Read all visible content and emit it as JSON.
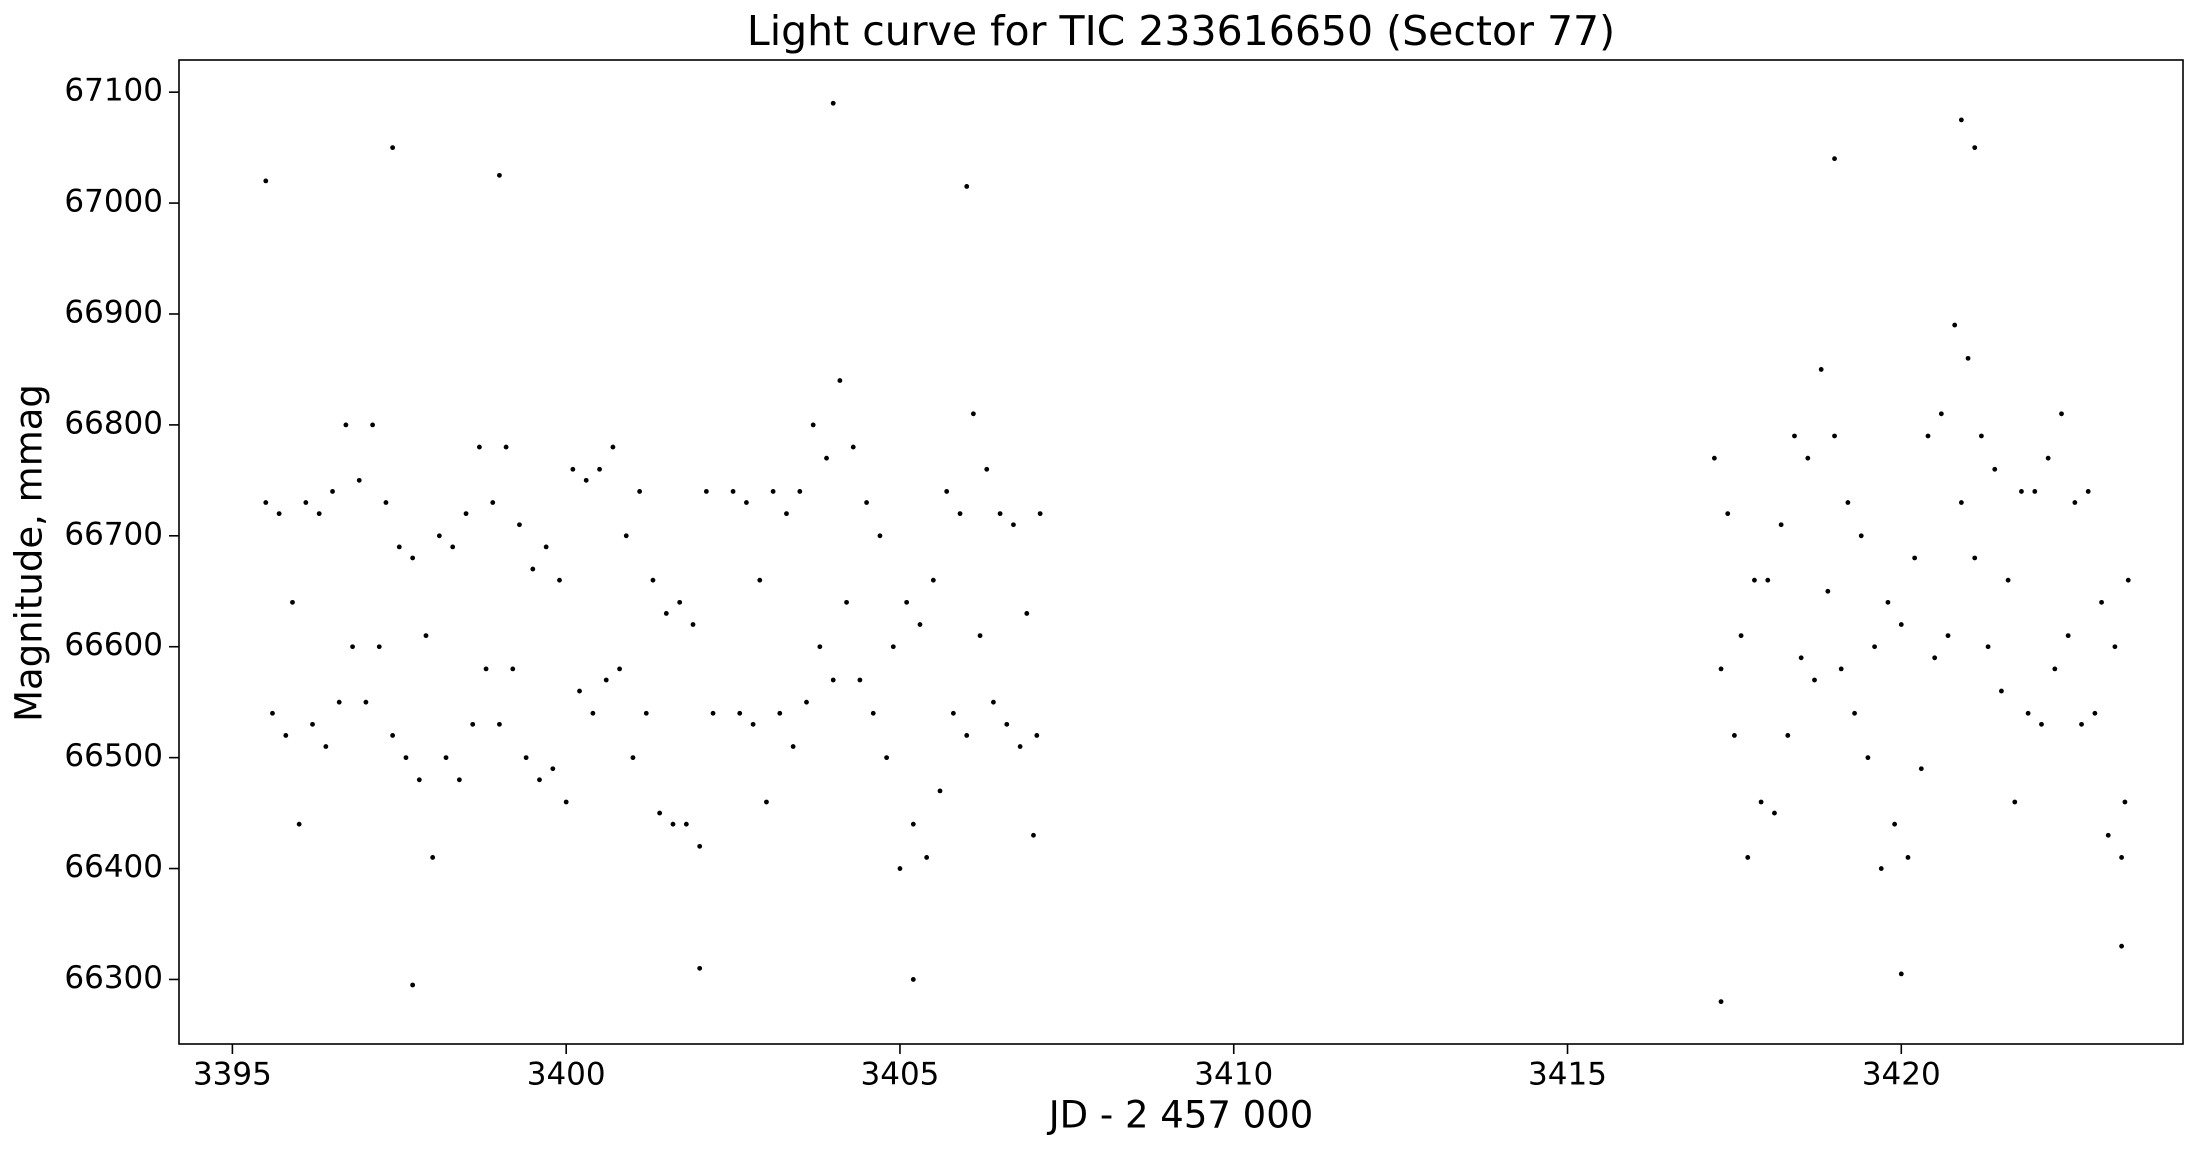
{
  "chart_data": {
    "type": "scatter",
    "title": "Light curve for TIC 233616650 (Sector 77)",
    "x_label": "JD - 2 457 000",
    "y_label": "Magnitude, mmag",
    "xlim": [
      3394.2,
      3424.22
    ],
    "ylim": [
      66241.8,
      67129
    ],
    "xticks": [
      3395,
      3400,
      3405,
      3410,
      3415,
      3420
    ],
    "yticks": [
      66300,
      66400,
      66500,
      66600,
      66700,
      66800,
      66900,
      67000,
      67100
    ],
    "x": [
      3395.5,
      3395.6,
      3395.7,
      3395.8,
      3395.9,
      3396.0,
      3396.1,
      3396.2,
      3396.3,
      3396.4,
      3396.5,
      3396.6,
      3396.7,
      3396.8,
      3396.9,
      3397.0,
      3397.1,
      3397.2,
      3397.3,
      3397.4,
      3397.5,
      3397.6,
      3397.7,
      3397.8,
      3397.9,
      3398.0,
      3398.1,
      3398.2,
      3398.3,
      3398.4,
      3398.5,
      3398.6,
      3398.7,
      3398.8,
      3398.9,
      3399.0,
      3399.1,
      3399.2,
      3399.3,
      3399.4,
      3399.5,
      3399.6,
      3399.7,
      3399.8,
      3399.9,
      3400.0,
      3400.1,
      3400.2,
      3400.3,
      3400.4,
      3400.5,
      3400.6,
      3400.7,
      3400.8,
      3400.9,
      3401.0,
      3401.1,
      3401.2,
      3401.3,
      3401.4,
      3401.5,
      3401.6,
      3401.7,
      3401.8,
      3401.9,
      3402.0,
      3402.1,
      3402.2,
      3402.5,
      3402.6,
      3402.7,
      3402.8,
      3402.9,
      3403.0,
      3403.1,
      3403.2,
      3403.3,
      3403.4,
      3403.5,
      3403.6,
      3403.7,
      3403.8,
      3403.9,
      3404.0,
      3404.1,
      3404.2,
      3404.3,
      3404.4,
      3404.5,
      3404.6,
      3404.7,
      3404.8,
      3404.9,
      3405.0,
      3405.1,
      3405.2,
      3405.3,
      3405.4,
      3405.5,
      3405.6,
      3405.7,
      3405.8,
      3405.9,
      3406.0,
      3406.1,
      3406.2,
      3406.3,
      3406.4,
      3406.5,
      3406.6,
      3406.7,
      3406.8,
      3406.9,
      3407.0,
      3407.1,
      3407.05,
      3417.2,
      3417.3,
      3417.4,
      3417.5,
      3417.6,
      3417.7,
      3417.8,
      3417.9,
      3418.0,
      3418.1,
      3418.2,
      3418.3,
      3418.4,
      3418.5,
      3418.6,
      3418.7,
      3418.8,
      3418.9,
      3419.0,
      3419.1,
      3419.2,
      3419.3,
      3419.4,
      3419.5,
      3419.6,
      3419.7,
      3419.8,
      3419.9,
      3420.0,
      3420.1,
      3420.2,
      3420.3,
      3420.4,
      3420.5,
      3420.6,
      3420.7,
      3420.8,
      3420.9,
      3421.0,
      3421.1,
      3421.2,
      3421.3,
      3421.4,
      3421.5,
      3421.6,
      3421.7,
      3421.8,
      3421.9,
      3422.0,
      3422.1,
      3422.2,
      3422.3,
      3422.4,
      3422.5,
      3422.6,
      3422.7,
      3422.8,
      3422.9,
      3423.0,
      3423.1,
      3423.2,
      3423.3,
      3423.4,
      3423.35,
      3395.5,
      3397.4,
      3397.7,
      3404.0,
      3405.2,
      3402.0,
      3417.3,
      3420.0,
      3420.9,
      3421.1,
      3419.0,
      3423.3,
      3399.0,
      3406.0
    ],
    "series": [
      {
        "name": "TIC 233616650",
        "color": "#000000",
        "values": [
          66730,
          66540,
          66720,
          66520,
          66640,
          66440,
          66730,
          66530,
          66720,
          66510,
          66740,
          66550,
          66800,
          66600,
          66750,
          66550,
          66800,
          66600,
          66730,
          66520,
          66690,
          66500,
          66680,
          66480,
          66610,
          66410,
          66700,
          66500,
          66690,
          66480,
          66720,
          66530,
          66780,
          66580,
          66730,
          66530,
          66780,
          66580,
          66710,
          66500,
          66670,
          66480,
          66690,
          66490,
          66660,
          66460,
          66760,
          66560,
          66750,
          66540,
          66760,
          66570,
          66780,
          66580,
          66700,
          66500,
          66740,
          66540,
          66660,
          66450,
          66630,
          66440,
          66640,
          66440,
          66620,
          66420,
          66740,
          66540,
          66740,
          66540,
          66730,
          66530,
          66660,
          66460,
          66740,
          66540,
          66720,
          66510,
          66740,
          66550,
          66800,
          66600,
          66770,
          66570,
          66840,
          66640,
          66780,
          66570,
          66730,
          66540,
          66700,
          66500,
          66600,
          66400,
          66640,
          66440,
          66620,
          66410,
          66660,
          66470,
          66740,
          66540,
          66720,
          66520,
          66810,
          66610,
          66760,
          66550,
          66720,
          66530,
          66710,
          66510,
          66630,
          66430,
          66720,
          66520,
          66770,
          66580,
          66720,
          66520,
          66610,
          66410,
          66660,
          66460,
          66660,
          66450,
          66710,
          66520,
          66790,
          66590,
          66770,
          66570,
          66850,
          66650,
          66790,
          66580,
          66730,
          66540,
          66700,
          66500,
          66600,
          66400,
          66640,
          66440,
          66620,
          66410,
          66680,
          66490,
          66790,
          66590,
          66810,
          66610,
          66890,
          66730,
          66860,
          66680,
          66790,
          66600,
          66760,
          66560,
          66660,
          66460,
          66740,
          66540,
          66740,
          66530,
          66770,
          66580,
          66810,
          66610,
          66730,
          66530,
          66740,
          66540,
          66640,
          66430,
          66600,
          66410,
          66660,
          66460,
          67020,
          67050,
          66295,
          67090,
          66300,
          66310,
          66280,
          66305,
          67075,
          67050,
          67040,
          66330,
          67025,
          67015
        ]
      }
    ]
  }
}
